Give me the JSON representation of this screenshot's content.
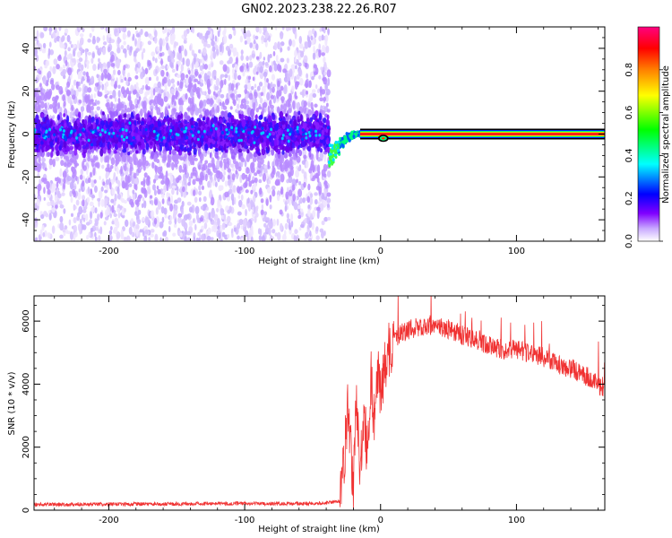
{
  "title": "GN02.2023.238.22.26.R07",
  "colors": {
    "snr_line": "#f03232",
    "colormap": [
      "#ffffff",
      "#8000ff",
      "#0000ff",
      "#00ffff",
      "#00ff00",
      "#ffff00",
      "#ff8000",
      "#ff0000",
      "#ff0080"
    ]
  },
  "chart_data": [
    {
      "type": "heatmap",
      "xlabel": "Height of straight line (km)",
      "ylabel": "Frequency (Hz)",
      "xlim": [
        -255,
        165
      ],
      "ylim": [
        -50,
        50
      ],
      "xticks": [
        -200,
        -100,
        0,
        100
      ],
      "xtick_labels": [
        "-200",
        "-100",
        "0",
        "100"
      ],
      "yticks": [
        -40,
        -20,
        0,
        20,
        40
      ],
      "ytick_labels": [
        "-40",
        "-20",
        "0",
        "20",
        "40"
      ],
      "grid": false,
      "colorbar": {
        "label": "Normalized spectral amplitude",
        "range": [
          0.0,
          1.0
        ],
        "ticks": [
          0.0,
          0.2,
          0.4,
          0.6,
          0.8
        ],
        "tick_labels": [
          "0.0",
          "0.2",
          "0.4",
          "0.6",
          "0.8"
        ]
      },
      "features": {
        "noise_region_x": [
          -255,
          -38
        ],
        "transition_x": [
          -38,
          -15
        ],
        "carrier_line_x": [
          -15,
          165
        ],
        "carrier_frequency_hz": 0
      }
    },
    {
      "type": "line",
      "xlabel": "Height of straight line (km)",
      "ylabel": "SNR (10 * v/v)",
      "xlim": [
        -255,
        165
      ],
      "ylim": [
        0,
        6800
      ],
      "xticks": [
        -200,
        -100,
        0,
        100
      ],
      "xtick_labels": [
        "-200",
        "-100",
        "0",
        "100"
      ],
      "yticks": [
        0,
        2000,
        4000,
        6000
      ],
      "ytick_labels": [
        "0",
        "2000",
        "4000",
        "6000"
      ],
      "grid": false,
      "series": [
        {
          "x": [
            -255,
            -200,
            -150,
            -100,
            -60,
            -40,
            -30,
            -27,
            -24,
            -20,
            -18,
            -15,
            -12,
            -10,
            -7,
            -5,
            -2,
            0,
            3,
            6,
            10,
            15,
            20,
            30,
            40,
            50,
            60,
            70,
            80,
            90,
            100,
            110,
            120,
            130,
            140,
            150,
            160,
            165
          ],
          "y": [
            180,
            190,
            200,
            210,
            210,
            230,
            280,
            1500,
            3300,
            600,
            3900,
            1200,
            3500,
            1600,
            4200,
            2900,
            4600,
            3600,
            4600,
            5100,
            5400,
            5600,
            5700,
            5850,
            5900,
            5750,
            5550,
            5400,
            5200,
            5100,
            5100,
            5000,
            4850,
            4600,
            4500,
            4300,
            4000,
            3900
          ]
        }
      ]
    }
  ]
}
